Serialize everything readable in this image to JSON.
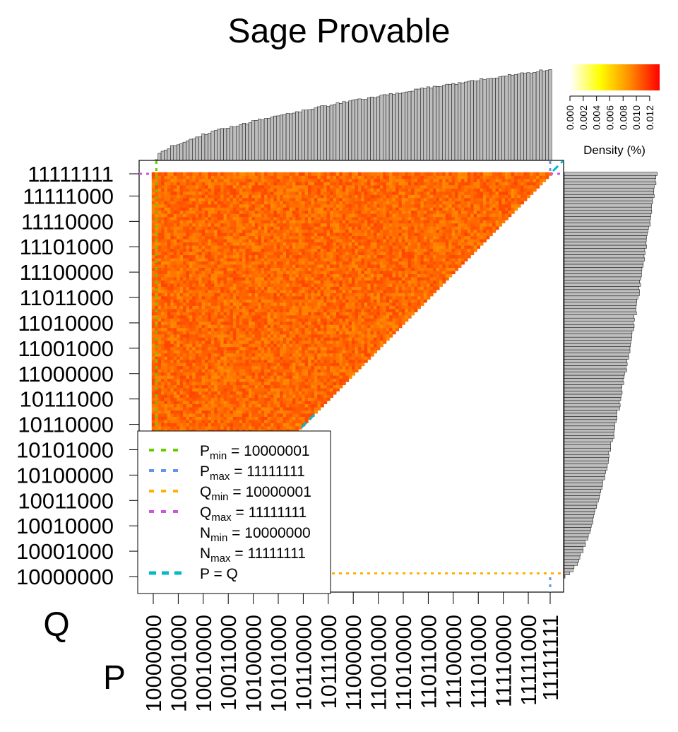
{
  "chart_data": {
    "type": "heatmap",
    "title": "Sage Provable",
    "xlabel": "P",
    "ylabel": "Q",
    "x_range": [
      128,
      255
    ],
    "y_range": [
      128,
      255
    ],
    "x_ticks": [
      "10000000",
      "10001000",
      "10010000",
      "10011000",
      "10100000",
      "10101000",
      "10110000",
      "10111000",
      "11000000",
      "11001000",
      "11010000",
      "11011000",
      "11100000",
      "11101000",
      "11110000",
      "11111000",
      "11111111"
    ],
    "y_ticks": [
      "10000000",
      "10001000",
      "10010000",
      "10011000",
      "10100000",
      "10101000",
      "10110000",
      "10111000",
      "11000000",
      "11001000",
      "11010000",
      "11011000",
      "11100000",
      "11101000",
      "11110000",
      "11111000",
      "11111111"
    ],
    "region": "cells where P <= Q and P*Q >= 2^14 are filled; white elsewhere",
    "colorbar": {
      "label": "Density (%)",
      "range": [
        0.0,
        0.0135
      ],
      "ticks": [
        "0.000",
        "0.002",
        "0.004",
        "0.006",
        "0.008",
        "0.010",
        "0.012"
      ],
      "colors": [
        "#ffffff",
        "#ffff00",
        "#ff8c00",
        "#ff0000"
      ]
    },
    "reference_lines": [
      {
        "label_main": "P",
        "label_sub": "min",
        "value": "10000001",
        "color": "#66cc00",
        "style": "dotted"
      },
      {
        "label_main": "P",
        "label_sub": "max",
        "value": "11111111",
        "color": "#6495ed",
        "style": "dotted"
      },
      {
        "label_main": "Q",
        "label_sub": "min",
        "value": "10000001",
        "color": "#ffb000",
        "style": "dotted"
      },
      {
        "label_main": "Q",
        "label_sub": "max",
        "value": "11111111",
        "color": "#cc55dd",
        "style": "dotted"
      },
      {
        "label_main": "N",
        "label_sub": "min",
        "value": "10000000",
        "color": "none",
        "style": "none"
      },
      {
        "label_main": "N",
        "label_sub": "max",
        "value": "11111111",
        "color": "none",
        "style": "none"
      },
      {
        "label_main": "P = Q",
        "label_sub": "",
        "value": "",
        "color": "#00bbcc",
        "style": "dashed"
      }
    ],
    "marginal_top": {
      "description": "column density of P, rising from ~0 at P=10000001 to maximum at P=11111111"
    },
    "marginal_right": {
      "description": "row density of Q, rising from ~0 at Q=10000000 to maximum at Q=11111111"
    }
  }
}
